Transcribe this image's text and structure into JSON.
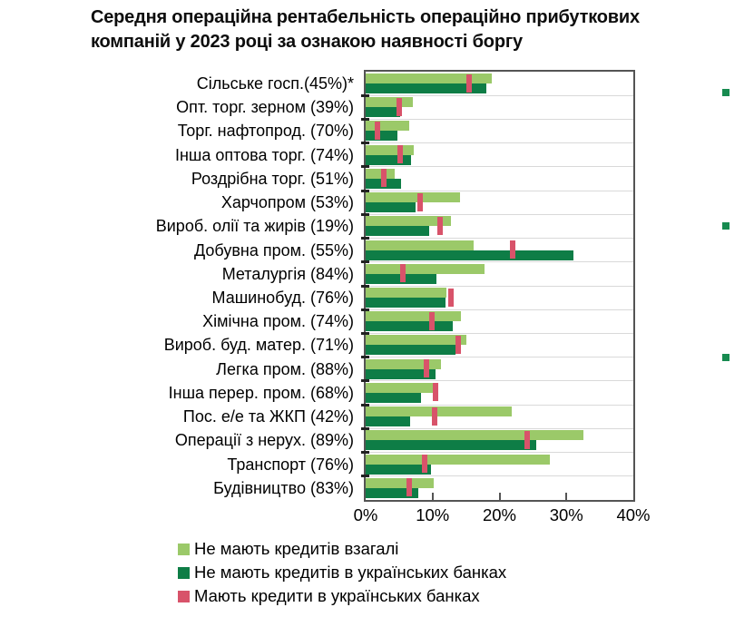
{
  "chart_data": {
    "type": "bar",
    "orientation": "horizontal",
    "title": "Середня операційна рентабельність операційно прибуткових компаній у 2023 році за ознакою наявності боргу",
    "title_lines": [
      "Середня операційна рентабельність операційно прибуткових",
      "компаній у 2023 році за ознакою наявності боргу"
    ],
    "xlim": [
      0,
      40
    ],
    "x_tick_values": [
      0,
      10,
      20,
      30,
      40
    ],
    "x_tick_labels": [
      "0%",
      "10%",
      "20%",
      "30%",
      "40%"
    ],
    "grid": "category-separator-lines",
    "legend_position": "bottom-left",
    "footnote_marker": "*",
    "categories": [
      "Сільське госп.(45%)*",
      "Опт. торг. зерном (39%)",
      "Торг. нафтопрод. (70%)",
      "Інша оптова торг. (74%)",
      "Роздрібна торг. (51%)",
      "Харчопром (53%)",
      "Вироб. олії та жирів (19%)",
      "Добувна пром. (55%)",
      "Металургія (84%)",
      "Машинобуд. (76%)",
      "Хімічна пром. (74%)",
      "Вироб. буд. матер. (71%)",
      "Легка пром. (88%)",
      "Інша перер. пром. (68%)",
      "Пос. е/е та ЖКП (42%)",
      "Операції з нерух. (89%)",
      "Транспорт (76%)",
      "Будівництво (83%)"
    ],
    "series": [
      {
        "name": "Не мають кредитів взагалі",
        "style": "bar",
        "color": "#9BC969",
        "values": [
          18.8,
          7.0,
          6.5,
          7.2,
          4.4,
          14.1,
          12.8,
          16.2,
          17.8,
          12.1,
          14.2,
          15.1,
          11.3,
          10.0,
          21.8,
          32.6,
          27.5,
          10.2
        ]
      },
      {
        "name": "Не мають кредитів в українських банках",
        "style": "bar",
        "color": "#0E7D46",
        "values": [
          18.1,
          5.1,
          4.8,
          6.8,
          5.3,
          7.5,
          9.5,
          31.1,
          10.6,
          11.9,
          13.0,
          13.4,
          10.5,
          8.3,
          6.7,
          25.5,
          9.7,
          7.9
        ]
      },
      {
        "name": "Мають кредити в українських банках",
        "style": "tick-marker",
        "color": "#D8536A",
        "values": [
          15.5,
          5.0,
          1.7,
          5.1,
          2.7,
          8.1,
          11.1,
          21.9,
          5.6,
          12.8,
          9.9,
          13.8,
          9.1,
          10.4,
          10.3,
          24.2,
          8.8,
          6.5
        ]
      }
    ]
  },
  "colors": {
    "frame": "#545454",
    "gridline": "#d9d9d9",
    "axis_tick": "#545454",
    "category_tick": "#222222",
    "side_bullet": "#178B50"
  },
  "side_bullets": {
    "icon": "green-square-bullet",
    "count": 3
  }
}
